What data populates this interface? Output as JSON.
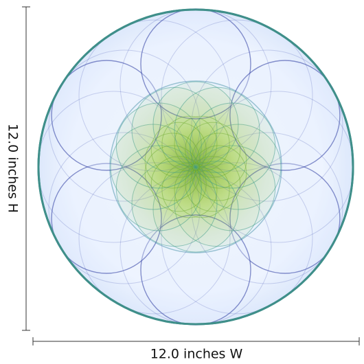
{
  "dimensions": {
    "height_label": "12.0 inches H",
    "width_label": "12.0 inches W"
  }
}
